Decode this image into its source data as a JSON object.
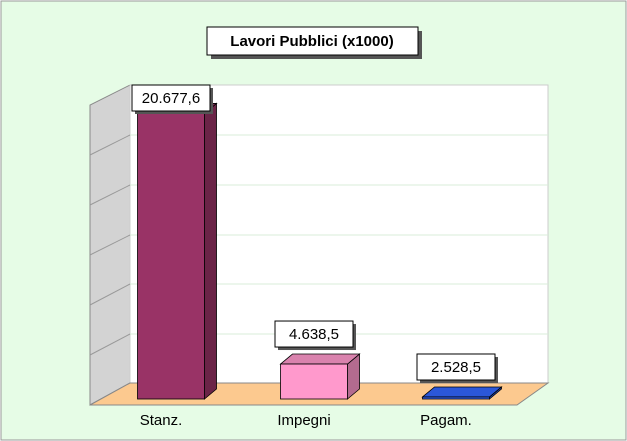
{
  "chart_data": {
    "type": "bar3d",
    "title": "Lavori Pubblici (x1000)",
    "categories": [
      "Stanz.",
      "Impegni",
      "Pagam."
    ],
    "values": [
      20677.6,
      4638.5,
      2528.5
    ],
    "value_labels": [
      "20.677,6",
      "4.638,5",
      "2.528,5"
    ],
    "colors": [
      "#993366",
      "#ff99cc",
      "#3366ff"
    ],
    "ylim": [
      2400,
      21600
    ]
  }
}
